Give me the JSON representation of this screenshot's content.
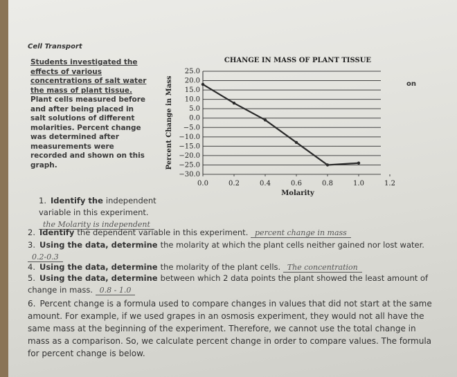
{
  "header": {
    "title": "Cell Transport"
  },
  "intro": {
    "lines": [
      "Students investigated the",
      "effects of various",
      "concentrations of salt water",
      "the mass of plant tissue.",
      "Plant cells measured before",
      "and after being placed in",
      "salt solutions of different",
      "molarities. Percent change",
      "was determined after",
      "measurements were",
      "recorded and shown on this",
      "graph."
    ],
    "aside": "on"
  },
  "chart_data": {
    "type": "line",
    "title": "CHANGE IN MASS OF PLANT TISSUE",
    "x_label": "Molarity",
    "y_label": "Percent Change in Mass",
    "x": [
      0.0,
      0.2,
      0.4,
      0.6,
      0.8,
      1.0
    ],
    "series": [
      {
        "name": "Percent Change in Mass",
        "color": "#2a2a2a",
        "values": [
          18,
          8,
          -1,
          -13,
          -25,
          -24
        ]
      }
    ],
    "xlim": [
      0,
      1.2
    ],
    "ylim": [
      -30,
      25
    ],
    "xticks": [
      {
        "value": 0,
        "label": "0.0"
      },
      0.2,
      0.4,
      0.6,
      0.8,
      {
        "value": 1,
        "label": "1.0"
      },
      1.2
    ],
    "yticks": [
      {
        "value": 25,
        "label": "25.0"
      },
      {
        "value": 20,
        "label": "20.0"
      },
      {
        "value": 15,
        "label": "15.0"
      },
      {
        "value": 10,
        "label": "10.0"
      },
      {
        "value": 5,
        "label": "5.0"
      },
      {
        "value": 0,
        "label": "0.0"
      },
      {
        "value": -5,
        "label": "−5.0"
      },
      {
        "value": -10,
        "label": "−10.0"
      },
      {
        "value": -15,
        "label": "−15.0"
      },
      {
        "value": -20,
        "label": "−20.0"
      },
      {
        "value": -25,
        "label": "−25.0"
      },
      {
        "value": -30,
        "label": "−30.0"
      }
    ],
    "grid": true
  },
  "questions": [
    {
      "number": "1.",
      "bold": "Identify the",
      "text": "independent variable in this experiment.",
      "answer": "the Molarity is independent"
    },
    {
      "number": "2.",
      "bold": "Identify",
      "text": "the dependent variable in this experiment.",
      "answer": "percent change in mass"
    },
    {
      "number": "3.",
      "bold": "Using the data, determine",
      "text": "the molarity at which the plant cells neither gained nor lost water.",
      "answer": "0.2-0.3"
    },
    {
      "number": "4.",
      "bold": "Using the data, determine",
      "text": "the molarity of the plant cells.",
      "answer": "The concentration"
    },
    {
      "number": "5.",
      "bold": "Using the data, determine",
      "text": "between which 2 data points the plant showed the least amount of change in mass.",
      "answer": "0.8 - 1.0"
    },
    {
      "number": "6.",
      "bold": "",
      "text": "Percent change is a formula used to compare changes in values that did not start at the same amount. For example, if we used grapes in an osmosis experiment, they would not all have the same mass at the beginning of the experiment. Therefore, we cannot use the total change in mass as a comparison. So, we calculate percent change in order to compare values. The formula for percent change is below.",
      "answer": ""
    }
  ]
}
